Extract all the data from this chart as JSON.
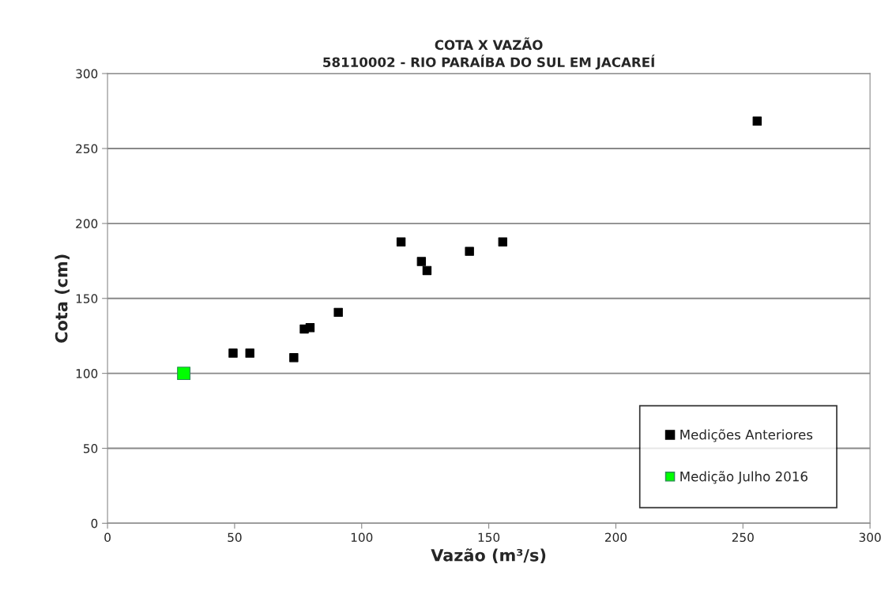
{
  "chart_data": {
    "type": "scatter",
    "title": "COTA X VAZÃO\n58110002 - RIO PARAÍBA DO SUL EM JACAREÍ",
    "xlabel": "Vazão (m³/s)",
    "ylabel": "Cota (cm)",
    "series": [
      {
        "name": "Medições Anteriores",
        "color": "#000000",
        "x": [
          49.4,
          56.0,
          73.3,
          77.4,
          79.7,
          90.8,
          115.5,
          123.5,
          125.7,
          142.4,
          155.5,
          255.6
        ],
        "values": [
          113.5,
          113.5,
          110.5,
          129.6,
          130.5,
          140.7,
          187.7,
          174.6,
          168.6,
          181.4,
          187.7,
          268.3
        ]
      },
      {
        "name": "Medição Julho 2016",
        "color": "#00ff00",
        "x": [
          30
        ],
        "values": [
          100
        ]
      }
    ],
    "xlim": [
      0,
      300
    ],
    "xticks": [
      0,
      50,
      100,
      150,
      200,
      250,
      300
    ],
    "ylim": [
      0,
      300
    ],
    "yticks": [
      0,
      50,
      100,
      150,
      200,
      250,
      300
    ],
    "grid": "y",
    "legend": "bottom right",
    "marker": "square"
  }
}
